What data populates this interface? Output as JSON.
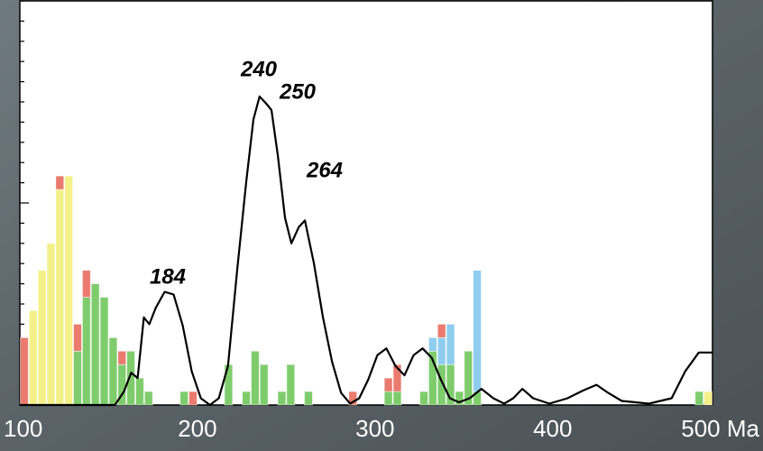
{
  "chart_data": {
    "type": "histogram",
    "bins": [
      100,
      105,
      110,
      115,
      120,
      125,
      130,
      135,
      140,
      145,
      150,
      155,
      160,
      165,
      170,
      175,
      180,
      185,
      190,
      195,
      200,
      205,
      210,
      215,
      220,
      225,
      230,
      235,
      240,
      245,
      250,
      255,
      260,
      265,
      270,
      275,
      280,
      285,
      290,
      295,
      300,
      305,
      310,
      315,
      320,
      325,
      330,
      335,
      340,
      345,
      350,
      355,
      360,
      365,
      370,
      375,
      380,
      385,
      390,
      395,
      400,
      405,
      410,
      415,
      420,
      425,
      430,
      435,
      440,
      445,
      450,
      455,
      460,
      465,
      470,
      475,
      480,
      485,
      490
    ],
    "series": [
      {
        "color": "#7fcc6d",
        "values": [
          0,
          0,
          0,
          0,
          0,
          0,
          4,
          8,
          9,
          8,
          5,
          3,
          4,
          2,
          1,
          0,
          0,
          0,
          1,
          0,
          0,
          0,
          0,
          3,
          0,
          1,
          4,
          3,
          0,
          1,
          3,
          0,
          1,
          0,
          0,
          0,
          0,
          0,
          0,
          0,
          0,
          1,
          1,
          0,
          0,
          1,
          4,
          3,
          3,
          1,
          4,
          1,
          0,
          0,
          0,
          0,
          0,
          0,
          0,
          0,
          0,
          0,
          0,
          0,
          0,
          0,
          0,
          0,
          0,
          0,
          0,
          0,
          0,
          0,
          0,
          0,
          1,
          0
        ]
      },
      {
        "color": "#f3f08a",
        "values": [
          0,
          7,
          10,
          12,
          16,
          17,
          0,
          0,
          0,
          0,
          0,
          0,
          0,
          0,
          0,
          0,
          0,
          0,
          0,
          0,
          0,
          0,
          0,
          0,
          0,
          0,
          0,
          0,
          0,
          0,
          0,
          0,
          0,
          0,
          0,
          0,
          0,
          0,
          0,
          0,
          0,
          0,
          0,
          0,
          0,
          0,
          0,
          0,
          0,
          0,
          0,
          0,
          0,
          0,
          0,
          0,
          0,
          0,
          0,
          0,
          0,
          0,
          0,
          0,
          0,
          0,
          0,
          0,
          0,
          0,
          0,
          0,
          0,
          0,
          0,
          0,
          0,
          1
        ]
      },
      {
        "color": "#8fcdef",
        "values": [
          0,
          0,
          0,
          0,
          0,
          0,
          0,
          0,
          0,
          0,
          0,
          0,
          0,
          0,
          0,
          0,
          0,
          0,
          0,
          0,
          0,
          0,
          0,
          0,
          0,
          0,
          0,
          0,
          0,
          0,
          0,
          0,
          0,
          0,
          0,
          0,
          0,
          0,
          0,
          0,
          0,
          0,
          0,
          0,
          0,
          0,
          1,
          2,
          3,
          0,
          0,
          9,
          0,
          0,
          0,
          0,
          0,
          0,
          0,
          0,
          0,
          0,
          0,
          0,
          0,
          0,
          0,
          0,
          0,
          0,
          0,
          0,
          0,
          0,
          0,
          0,
          0,
          0
        ]
      },
      {
        "color": "#ea7b6e",
        "values": [
          5,
          0,
          0,
          0,
          1,
          0,
          2,
          2,
          0,
          0,
          0,
          1,
          0,
          0,
          0,
          0,
          0,
          0,
          0,
          1,
          0,
          0,
          0,
          0,
          0,
          0,
          0,
          0,
          0,
          0,
          0,
          0,
          0,
          0,
          0,
          0,
          0,
          1,
          0,
          0,
          0,
          1,
          2,
          0,
          0,
          0,
          0,
          1,
          0,
          0,
          0,
          0,
          0,
          0,
          0,
          0,
          0,
          0,
          0,
          0,
          0,
          0,
          0,
          0,
          0,
          0,
          0,
          0,
          0,
          0,
          0,
          0,
          0,
          0,
          0,
          0,
          0,
          0
        ]
      }
    ],
    "curve": {
      "color": "#000000",
      "x": [
        100,
        153.5,
        158.6,
        162.7,
        166.3,
        169.8,
        172.9,
        176.5,
        181.5,
        186.6,
        191.7,
        196.8,
        201.9,
        207,
        212,
        217.2,
        222.3,
        227.4,
        231.5,
        235,
        238.6,
        241.7,
        245.3,
        249.3,
        252.9,
        257,
        260.5,
        265.6,
        270.7,
        275.8,
        280.9,
        286,
        291.1,
        296.2,
        301.3,
        306.4,
        311.5,
        316.6,
        321.7,
        326.8,
        331.9,
        337,
        342.1,
        347.2,
        353.3,
        359.9,
        366.6,
        372.7,
        377.8,
        382.9,
        389,
        398.2,
        408.4,
        417.5,
        424.7,
        431.3,
        438.9,
        454.2,
        467,
        474.6,
        482.3,
        490
      ],
      "values": [
        0,
        0,
        1,
        2.4,
        2,
        6.5,
        6,
        7.2,
        8.4,
        8.2,
        5.9,
        2.5,
        0.5,
        0,
        0.5,
        2.9,
        9.9,
        16.5,
        21.2,
        22.9,
        22.4,
        21.9,
        18.5,
        13.9,
        12,
        13.2,
        13.7,
        10.5,
        6.5,
        3.2,
        0.9,
        0.1,
        0.5,
        1.9,
        3.7,
        4.2,
        2.9,
        2.2,
        3.7,
        4.2,
        3.5,
        1.9,
        0.5,
        0.2,
        0.5,
        1.2,
        0.5,
        0.1,
        0.5,
        1.2,
        0.5,
        0.1,
        0.5,
        1.1,
        1.5,
        0.9,
        0.3,
        0.1,
        0.5,
        2.5,
        3.9,
        3.9
      ]
    },
    "annotations": [
      "184",
      "240",
      "250",
      "264"
    ],
    "xlim": [
      100,
      490
    ],
    "xticks": [
      100,
      200,
      300,
      400,
      {
        "value": 500,
        "label": "500 Ma"
      }
    ],
    "ylim": [
      0,
      30
    ],
    "yticks": [
      0,
      1.5,
      3,
      4.5,
      6,
      7.5,
      9,
      10.5,
      12,
      13.5,
      15,
      16.5,
      18,
      19.5,
      21,
      22.5,
      24,
      25.5,
      27,
      28.5,
      30
    ]
  }
}
